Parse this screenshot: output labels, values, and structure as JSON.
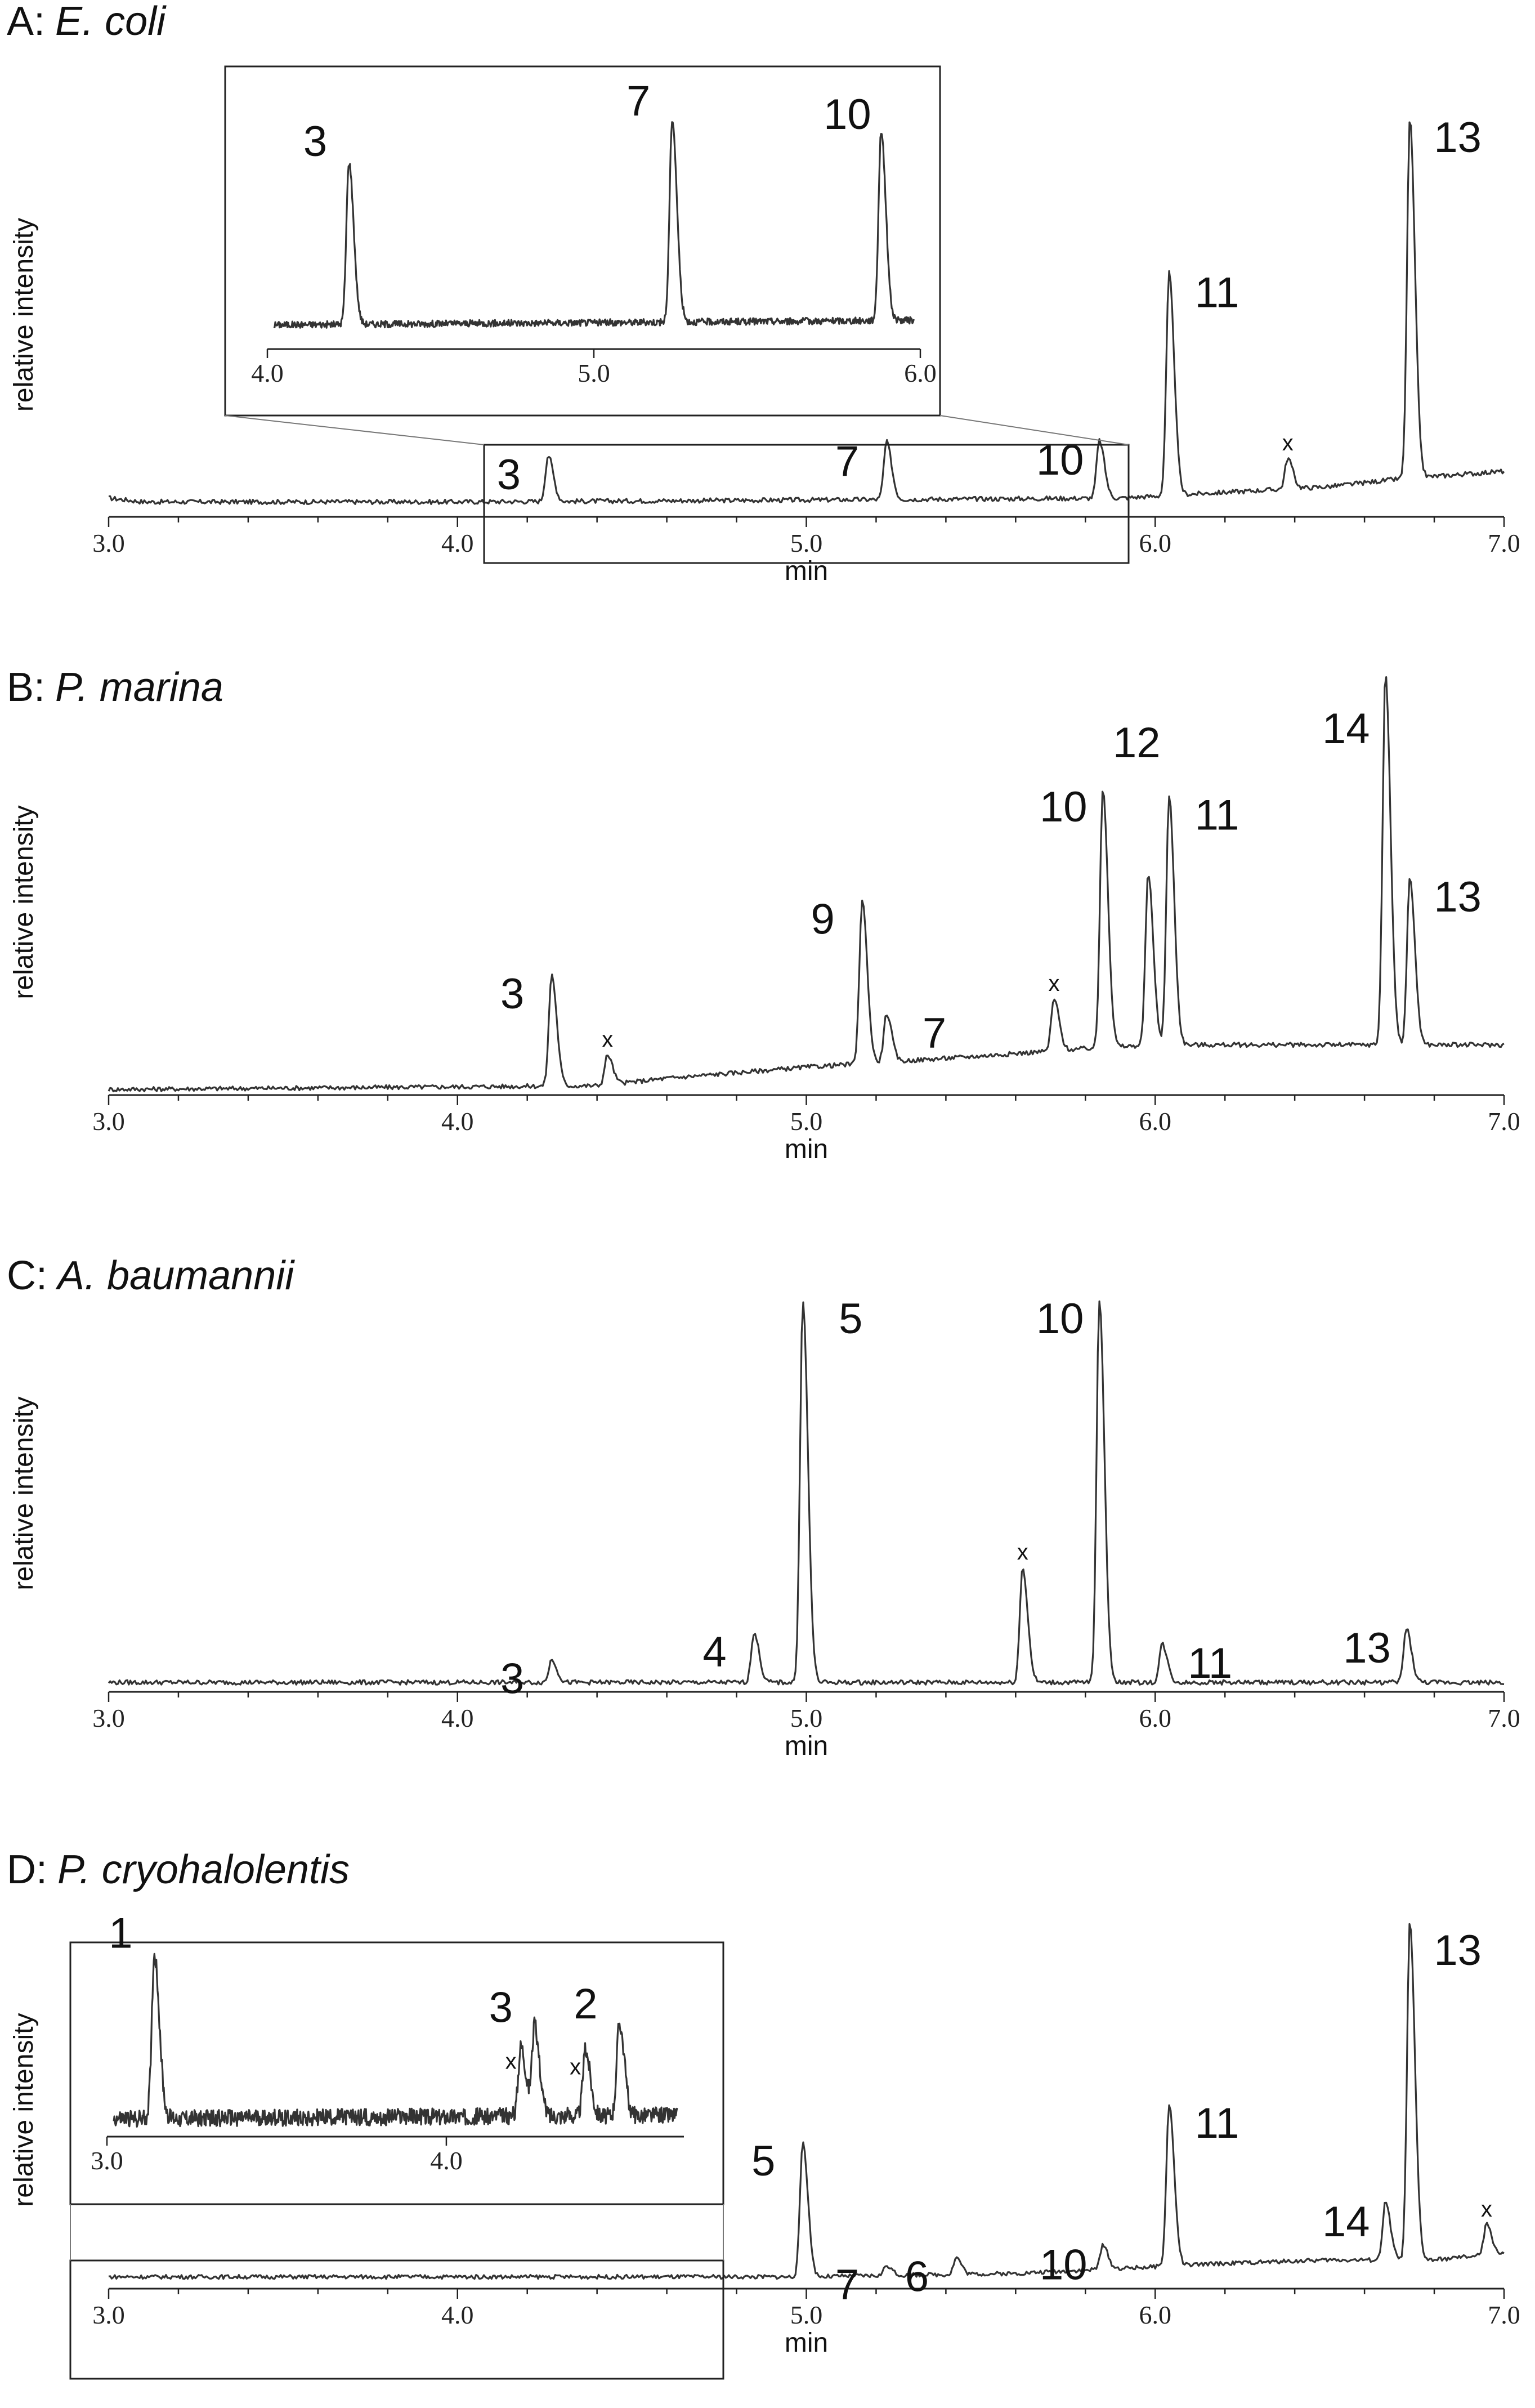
{
  "chart_data": [
    {
      "type": "line",
      "panel_letter": "A:",
      "species": "E. coli",
      "xlabel": "min",
      "ylabel": "relative intensity",
      "xlim": [
        3.0,
        7.0
      ],
      "ylim": [
        0,
        100
      ],
      "xticks": [
        "3.0",
        "4.0",
        "5.0",
        "6.0",
        "7.0"
      ],
      "baseline": [
        [
          3.0,
          3
        ],
        [
          3.1,
          2
        ],
        [
          4.0,
          2
        ],
        [
          5.0,
          2.5
        ],
        [
          5.9,
          3
        ],
        [
          6.1,
          4
        ],
        [
          6.5,
          6
        ],
        [
          6.7,
          8
        ],
        [
          7.0,
          10
        ]
      ],
      "peaks": [
        {
          "label": "3",
          "x": 4.26,
          "y": 12
        },
        {
          "label": "7",
          "x": 5.23,
          "y": 15
        },
        {
          "label": "10",
          "x": 5.84,
          "y": 15
        },
        {
          "label": "11",
          "x": 6.04,
          "y": 58
        },
        {
          "label": "x",
          "x": 6.38,
          "y": 8
        },
        {
          "label": "13",
          "x": 6.73,
          "y": 94
        }
      ],
      "inset": {
        "xlim": [
          4.0,
          6.0
        ],
        "xticks": [
          "4.0",
          "5.0",
          "6.0"
        ],
        "peaks": [
          {
            "label": "3",
            "x": 4.25,
            "y": 72
          },
          {
            "label": "7",
            "x": 5.24,
            "y": 90
          },
          {
            "label": "10",
            "x": 5.88,
            "y": 84
          }
        ]
      }
    },
    {
      "type": "line",
      "panel_letter": "B:",
      "species": "P. marina",
      "xlabel": "min",
      "ylabel": "relative intensity",
      "xlim": [
        3.0,
        7.0
      ],
      "ylim": [
        0,
        100
      ],
      "xticks": [
        "3.0",
        "4.0",
        "5.0",
        "6.0",
        "7.0"
      ],
      "baseline": [
        [
          3.0,
          0
        ],
        [
          4.4,
          1
        ],
        [
          4.6,
          3
        ],
        [
          5.0,
          6
        ],
        [
          5.5,
          9
        ],
        [
          5.8,
          11
        ],
        [
          6.0,
          12
        ],
        [
          6.5,
          12
        ],
        [
          7.0,
          12
        ]
      ],
      "peaks": [
        {
          "label": "3",
          "x": 4.27,
          "y": 30
        },
        {
          "label": "x",
          "x": 4.43,
          "y": 8
        },
        {
          "label": "9",
          "x": 5.16,
          "y": 44
        },
        {
          "label": "7",
          "x": 5.23,
          "y": 13
        },
        {
          "label": "x",
          "x": 5.71,
          "y": 14
        },
        {
          "label": "10",
          "x": 5.85,
          "y": 70
        },
        {
          "label": "",
          "x": 5.98,
          "y": 46
        },
        {
          "label": "11",
          "x": 6.04,
          "y": 67
        },
        {
          "label": "14",
          "x": 6.66,
          "y": 100
        },
        {
          "label": "13",
          "x": 6.73,
          "y": 45
        }
      ],
      "extra_labels": [
        {
          "label": "12",
          "anchor_x": 5.85
        }
      ]
    },
    {
      "type": "line",
      "panel_letter": "C:",
      "species": "A. baumannii",
      "xlabel": "min",
      "ylabel": "relative intensity",
      "xlim": [
        3.0,
        7.0
      ],
      "ylim": [
        0,
        100
      ],
      "xticks": [
        "3.0",
        "4.0",
        "5.0",
        "6.0",
        "7.0"
      ],
      "baseline": [
        [
          3.0,
          1
        ],
        [
          7.0,
          1
        ]
      ],
      "peaks": [
        {
          "label": "3",
          "x": 4.27,
          "y": 6
        },
        {
          "label": "4",
          "x": 4.85,
          "y": 13
        },
        {
          "label": "5",
          "x": 4.99,
          "y": 100
        },
        {
          "label": "x",
          "x": 5.62,
          "y": 30
        },
        {
          "label": "10",
          "x": 5.84,
          "y": 100
        },
        {
          "label": "11",
          "x": 6.02,
          "y": 10
        },
        {
          "label": "13",
          "x": 6.72,
          "y": 14
        }
      ]
    },
    {
      "type": "line",
      "panel_letter": "D:",
      "species": "P. cryohalolentis",
      "xlabel": "min",
      "ylabel": "relative intensity",
      "xlim": [
        3.0,
        7.0
      ],
      "ylim": [
        0,
        100
      ],
      "xticks": [
        "3.0",
        "4.0",
        "5.0",
        "6.0",
        "7.0"
      ],
      "baseline": [
        [
          3.0,
          1
        ],
        [
          5.0,
          1
        ],
        [
          5.6,
          2
        ],
        [
          6.2,
          5
        ],
        [
          6.5,
          6
        ],
        [
          6.8,
          6
        ],
        [
          7.0,
          8
        ]
      ],
      "peaks": [
        {
          "label": "5",
          "x": 4.99,
          "y": 40
        },
        {
          "label": "7",
          "x": 5.23,
          "y": 3
        },
        {
          "label": "6",
          "x": 5.43,
          "y": 5
        },
        {
          "label": "10",
          "x": 5.85,
          "y": 7
        },
        {
          "label": "11",
          "x": 6.04,
          "y": 48
        },
        {
          "label": "14",
          "x": 6.66,
          "y": 17
        },
        {
          "label": "13",
          "x": 6.73,
          "y": 100
        },
        {
          "label": "x",
          "x": 6.95,
          "y": 9
        }
      ],
      "inset": {
        "xlim": [
          3.0,
          4.7
        ],
        "xticks": [
          "3.0",
          "4.0"
        ],
        "peaks": [
          {
            "label": "1",
            "x": 3.14,
            "y": 88
          },
          {
            "label": "x",
            "x": 4.22,
            "y": 38
          },
          {
            "label": "3",
            "x": 4.26,
            "y": 48
          },
          {
            "label": "x",
            "x": 4.41,
            "y": 35
          },
          {
            "label": "2",
            "x": 4.51,
            "y": 50
          }
        ]
      }
    }
  ]
}
